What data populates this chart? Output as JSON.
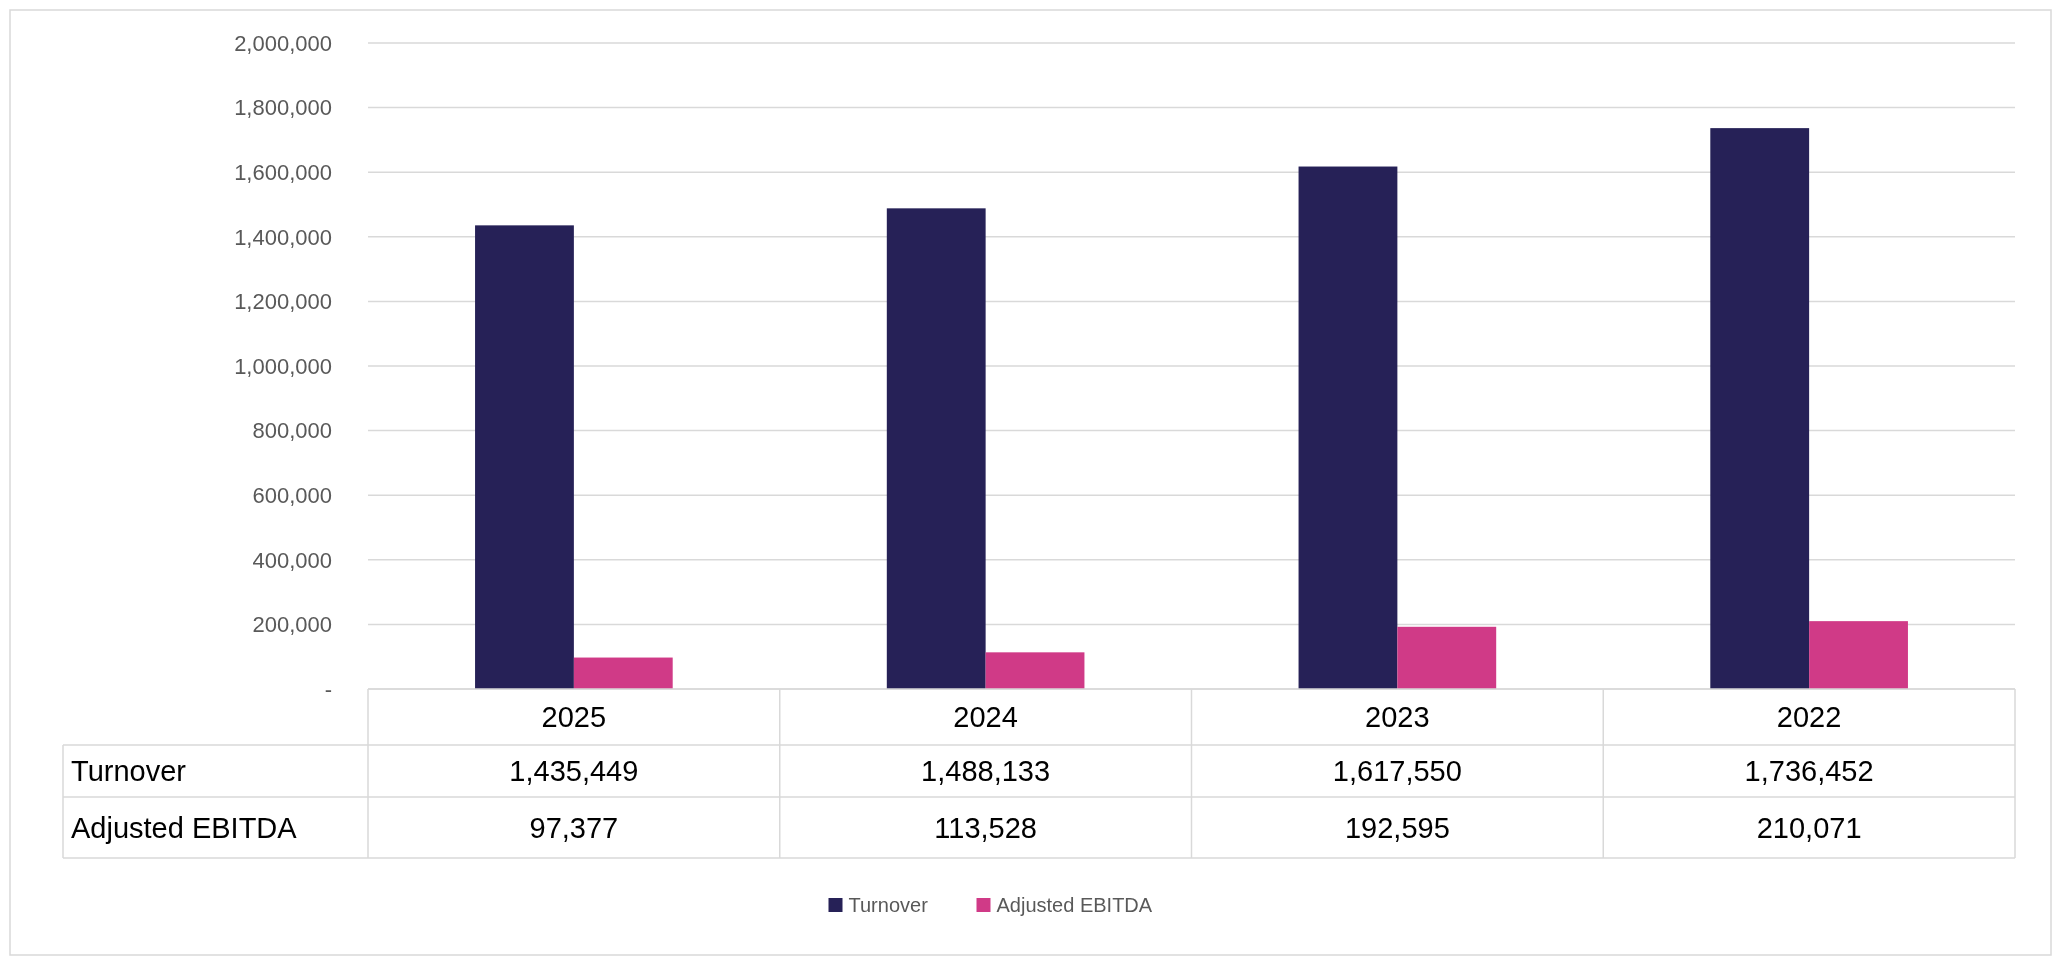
{
  "chart_data": {
    "type": "bar",
    "categories": [
      "2025",
      "2024",
      "2023",
      "2022"
    ],
    "series": [
      {
        "name": "Turnover",
        "color": "#262157",
        "values": [
          1435449,
          1488133,
          1617550,
          1736452
        ],
        "value_labels": [
          "1,435,449",
          "1,488,133",
          "1,617,550",
          "1,736,452"
        ]
      },
      {
        "name": "Adjusted EBITDA",
        "color": "#d03a87",
        "values": [
          97377,
          113528,
          192595,
          210071
        ],
        "value_labels": [
          "97,377",
          "113,528",
          "192,595",
          "210,071"
        ]
      }
    ],
    "ylim": [
      0,
      2000000
    ],
    "yticks": [
      {
        "value": 0,
        "label": "-"
      },
      {
        "value": 200000,
        "label": "200,000"
      },
      {
        "value": 400000,
        "label": "400,000"
      },
      {
        "value": 600000,
        "label": "600,000"
      },
      {
        "value": 800000,
        "label": "800,000"
      },
      {
        "value": 1000000,
        "label": "1,000,000"
      },
      {
        "value": 1200000,
        "label": "1,200,000"
      },
      {
        "value": 1400000,
        "label": "1,400,000"
      },
      {
        "value": 1600000,
        "label": "1,600,000"
      },
      {
        "value": 1800000,
        "label": "1,800,000"
      },
      {
        "value": 2000000,
        "label": "2,000,000"
      }
    ],
    "grid": "y",
    "legend": "bottom"
  }
}
